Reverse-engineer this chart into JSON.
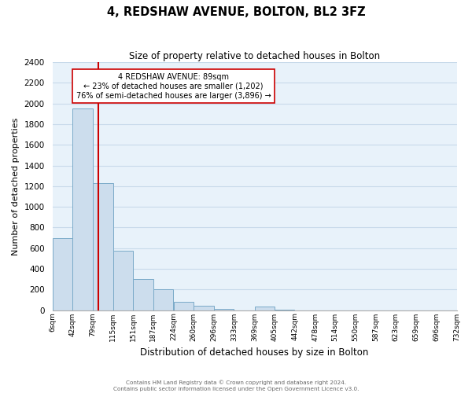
{
  "title": "4, REDSHAW AVENUE, BOLTON, BL2 3FZ",
  "subtitle": "Size of property relative to detached houses in Bolton",
  "xlabel": "Distribution of detached houses by size in Bolton",
  "ylabel": "Number of detached properties",
  "bin_edges": [
    6,
    42,
    79,
    115,
    151,
    187,
    224,
    260,
    296,
    333,
    369,
    405,
    442,
    478,
    514,
    550,
    587,
    623,
    659,
    696,
    732
  ],
  "bin_heights": [
    700,
    1950,
    1230,
    575,
    300,
    200,
    80,
    45,
    10,
    0,
    35,
    5,
    0,
    0,
    0,
    0,
    0,
    0,
    0,
    0
  ],
  "tick_labels": [
    "6sqm",
    "42sqm",
    "79sqm",
    "115sqm",
    "151sqm",
    "187sqm",
    "224sqm",
    "260sqm",
    "296sqm",
    "333sqm",
    "369sqm",
    "405sqm",
    "442sqm",
    "478sqm",
    "514sqm",
    "550sqm",
    "587sqm",
    "623sqm",
    "659sqm",
    "696sqm",
    "732sqm"
  ],
  "bar_color": "#ccdded",
  "bar_edge_color": "#7aaac8",
  "grid_color": "#c8daea",
  "background_color": "#e8f2fa",
  "vline_x": 89,
  "vline_color": "#cc0000",
  "ylim": [
    0,
    2400
  ],
  "yticks": [
    0,
    200,
    400,
    600,
    800,
    1000,
    1200,
    1400,
    1600,
    1800,
    2000,
    2200,
    2400
  ],
  "annotation_title": "4 REDSHAW AVENUE: 89sqm",
  "annotation_line1": "← 23% of detached houses are smaller (1,202)",
  "annotation_line2": "76% of semi-detached houses are larger (3,896) →",
  "annotation_box_edge": "#cc0000",
  "footer_line1": "Contains HM Land Registry data © Crown copyright and database right 2024.",
  "footer_line2": "Contains public sector information licensed under the Open Government Licence v3.0."
}
